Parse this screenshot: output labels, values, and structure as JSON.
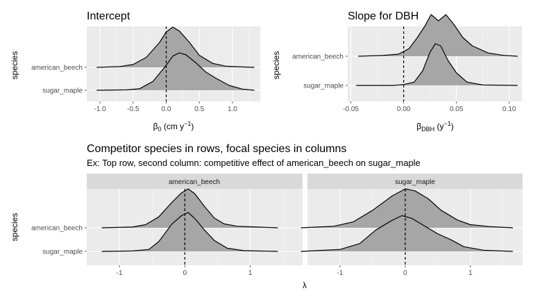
{
  "panels": {
    "intercept": {
      "title": "Intercept",
      "ylabel": "species",
      "xlabel_main": "β",
      "xlabel_sub": "0",
      "xlabel_rest": " (cm y",
      "xlabel_sup": "−1",
      "xlabel_end": ")"
    },
    "slope": {
      "title": "Slope for DBH",
      "ylabel": "species",
      "xlabel_main": "β",
      "xlabel_sub": "DBH",
      "xlabel_rest": " (y",
      "xlabel_sup": "−1",
      "xlabel_end": ")"
    },
    "competition": {
      "title": "Competitor species in rows, focal species in columns",
      "subtitle": "Ex: Top row, second column: competitive effect of american_beech on sugar_maple",
      "ylabel": "species",
      "xlabel": "λ",
      "facets": [
        "american_beech",
        "sugar_maple"
      ]
    }
  },
  "colors": {
    "panel_bg": "#ebebeb",
    "grid_major": "#ffffff",
    "strip_bg": "#d9d9d9",
    "density_fill": "#a6a6a6",
    "line": "#000000"
  },
  "chart_data": [
    {
      "type": "ridgeline",
      "title": "Intercept",
      "categories": [
        "american_beech",
        "sugar_maple"
      ],
      "xlim": [
        -1.2,
        1.42
      ],
      "x_ticks": [
        -1.0,
        -0.5,
        0.0,
        0.5,
        1.0
      ],
      "x_tick_labels": [
        "-1.0",
        "-0.5",
        "0.0",
        "0.5",
        "1.0"
      ],
      "reference_line_x": 0,
      "grid": true,
      "series": [
        {
          "name": "american_beech",
          "x": [
            -1.05,
            -0.7,
            -0.5,
            -0.3,
            -0.1,
            0.0,
            0.1,
            0.2,
            0.35,
            0.5,
            0.7,
            0.9,
            1.15,
            1.33
          ],
          "density": [
            0,
            0.02,
            0.07,
            0.25,
            0.62,
            0.88,
            1.0,
            0.9,
            0.62,
            0.3,
            0.1,
            0.03,
            0.01,
            0
          ]
        },
        {
          "name": "sugar_maple",
          "x": [
            -1.05,
            -0.6,
            -0.4,
            -0.2,
            0.0,
            0.1,
            0.2,
            0.3,
            0.45,
            0.6,
            0.75,
            0.95,
            1.15,
            1.33
          ],
          "density": [
            0,
            0.01,
            0.04,
            0.22,
            0.62,
            0.85,
            0.93,
            0.88,
            0.68,
            0.45,
            0.3,
            0.12,
            0.03,
            0
          ]
        }
      ]
    },
    {
      "type": "ridgeline",
      "title": "Slope for DBH",
      "categories": [
        "american_beech",
        "sugar_maple"
      ],
      "xlim": [
        -0.053,
        0.112
      ],
      "x_ticks": [
        -0.05,
        0.0,
        0.05,
        0.1
      ],
      "x_tick_labels": [
        "-0.05",
        "0.00",
        "0.05",
        "0.10"
      ],
      "reference_line_x": 0,
      "grid": true,
      "series": [
        {
          "name": "american_beech",
          "x": [
            -0.043,
            -0.02,
            -0.005,
            0.005,
            0.013,
            0.02,
            0.026,
            0.033,
            0.04,
            0.048,
            0.056,
            0.065,
            0.08,
            0.095,
            0.108
          ],
          "density": [
            0,
            0.02,
            0.05,
            0.18,
            0.45,
            0.72,
            1.0,
            0.85,
            1.0,
            0.75,
            0.45,
            0.25,
            0.08,
            0.02,
            0
          ]
        },
        {
          "name": "sugar_maple",
          "x": [
            -0.045,
            -0.01,
            0.0,
            0.01,
            0.018,
            0.025,
            0.03,
            0.035,
            0.042,
            0.05,
            0.06,
            0.075,
            0.108
          ],
          "density": [
            0,
            0.0,
            0.02,
            0.08,
            0.35,
            0.8,
            1.0,
            0.95,
            0.6,
            0.3,
            0.08,
            0.01,
            0
          ]
        }
      ]
    },
    {
      "type": "ridgeline",
      "title": "Competitor species in rows, focal species in columns",
      "facet": "american_beech",
      "categories": [
        "american_beech",
        "sugar_maple"
      ],
      "xlim": [
        -1.5,
        1.8
      ],
      "x_ticks": [
        -1,
        0,
        1
      ],
      "x_tick_labels": [
        "-1",
        "0",
        "1"
      ],
      "reference_line_x": 0,
      "grid": true,
      "series": [
        {
          "name": "american_beech",
          "x": [
            -1.27,
            -0.8,
            -0.6,
            -0.4,
            -0.2,
            -0.05,
            0.05,
            0.15,
            0.3,
            0.45,
            0.6,
            0.8,
            1.1,
            1.42
          ],
          "density": [
            0,
            0.02,
            0.08,
            0.28,
            0.65,
            0.9,
            1.0,
            0.88,
            0.55,
            0.25,
            0.1,
            0.04,
            0.02,
            0
          ]
        },
        {
          "name": "sugar_maple",
          "x": [
            -1.27,
            -0.8,
            -0.55,
            -0.4,
            -0.2,
            -0.05,
            0.05,
            0.15,
            0.3,
            0.45,
            0.65,
            0.9,
            1.42
          ],
          "density": [
            0,
            0.01,
            0.05,
            0.25,
            0.7,
            0.92,
            1.0,
            0.85,
            0.55,
            0.28,
            0.08,
            0.02,
            0
          ]
        }
      ]
    },
    {
      "type": "ridgeline",
      "title": "Competitor species in rows, focal species in columns",
      "facet": "sugar_maple",
      "categories": [
        "american_beech",
        "sugar_maple"
      ],
      "xlim": [
        -1.5,
        1.8
      ],
      "x_ticks": [
        -1,
        0,
        1
      ],
      "x_tick_labels": [
        "-1",
        "0",
        "1"
      ],
      "reference_line_x": 0,
      "grid": true,
      "series": [
        {
          "name": "american_beech",
          "x": [
            -1.6,
            -1.1,
            -0.8,
            -0.5,
            -0.2,
            0.0,
            0.15,
            0.35,
            0.55,
            0.8,
            1.0,
            1.3,
            1.65
          ],
          "density": [
            0,
            0.04,
            0.15,
            0.45,
            0.82,
            1.0,
            0.95,
            0.75,
            0.45,
            0.2,
            0.08,
            0.03,
            0
          ]
        },
        {
          "name": "sugar_maple",
          "x": [
            -1.6,
            -1.0,
            -0.7,
            -0.45,
            -0.2,
            -0.05,
            0.1,
            0.3,
            0.5,
            0.7,
            0.9,
            1.2,
            1.65
          ],
          "density": [
            0,
            0.05,
            0.2,
            0.55,
            0.8,
            0.92,
            0.85,
            0.65,
            0.45,
            0.3,
            0.12,
            0.03,
            0
          ]
        }
      ]
    }
  ]
}
